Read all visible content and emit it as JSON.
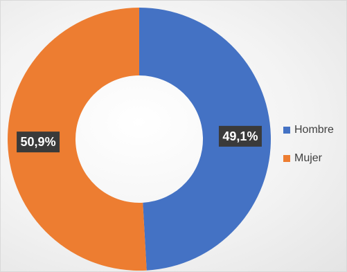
{
  "chart_data": {
    "type": "pie",
    "donut": true,
    "categories": [
      "Hombre",
      "Mujer"
    ],
    "values": [
      49.1,
      50.9
    ],
    "data_labels": [
      "49,1%",
      "50,9%"
    ],
    "colors": [
      "#4472c4",
      "#ed7d31"
    ],
    "legend_position": "right",
    "title": ""
  }
}
